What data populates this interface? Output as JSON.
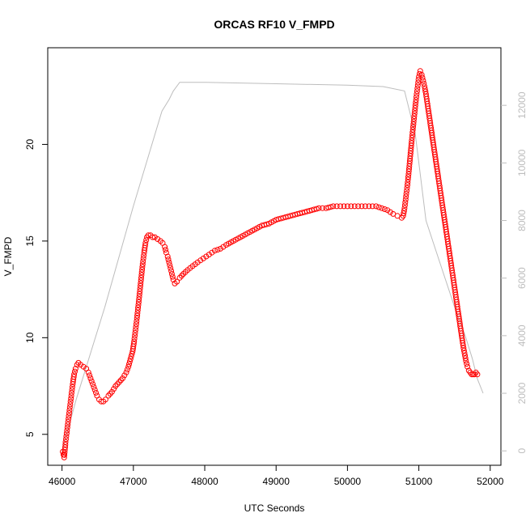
{
  "chart_data": {
    "type": "scatter",
    "title": "ORCAS RF10 V_FMPD",
    "xlabel": "UTC Seconds",
    "ylabel": "V_FMPD",
    "ylabel_right": "",
    "xlim": [
      45800,
      52150
    ],
    "ylim": [
      3.4,
      25.0
    ],
    "ylim_right": [
      -500,
      14000
    ],
    "x_ticks": [
      46000,
      47000,
      48000,
      49000,
      50000,
      51000,
      52000
    ],
    "x_tick_labels": [
      "46000",
      "47000",
      "48000",
      "49000",
      "50000",
      "51000",
      "52000"
    ],
    "y_ticks": [
      5,
      10,
      15,
      20
    ],
    "y_tick_labels": [
      "5",
      "10",
      "15",
      "20"
    ],
    "y_ticks_right": [
      0,
      2000,
      4000,
      6000,
      8000,
      10000,
      12000
    ],
    "y_tick_labels_right": [
      "0",
      "2000",
      "4000",
      "6000",
      "8000",
      "10000",
      "12000"
    ],
    "grid": false,
    "series": [
      {
        "type": "scatter",
        "axis": "left",
        "color": "#ff0000",
        "marker": "open-circle",
        "points": [
          [
            46010,
            4.1
          ],
          [
            46030,
            3.8
          ],
          [
            46050,
            4.6
          ],
          [
            46070,
            5.2
          ],
          [
            46090,
            5.8
          ],
          [
            46110,
            6.4
          ],
          [
            46130,
            7.0
          ],
          [
            46150,
            7.6
          ],
          [
            46170,
            8.1
          ],
          [
            46190,
            8.4
          ],
          [
            46210,
            8.6
          ],
          [
            46230,
            8.7
          ],
          [
            46260,
            8.6
          ],
          [
            46300,
            8.5
          ],
          [
            46340,
            8.4
          ],
          [
            46370,
            8.2
          ],
          [
            46400,
            7.9
          ],
          [
            46430,
            7.6
          ],
          [
            46460,
            7.3
          ],
          [
            46490,
            7.0
          ],
          [
            46520,
            6.8
          ],
          [
            46550,
            6.7
          ],
          [
            46580,
            6.7
          ],
          [
            46610,
            6.8
          ],
          [
            46650,
            7.0
          ],
          [
            46700,
            7.2
          ],
          [
            46750,
            7.5
          ],
          [
            46800,
            7.7
          ],
          [
            46850,
            7.9
          ],
          [
            46900,
            8.2
          ],
          [
            46930,
            8.5
          ],
          [
            46960,
            8.9
          ],
          [
            46990,
            9.3
          ],
          [
            47010,
            9.8
          ],
          [
            47030,
            10.4
          ],
          [
            47050,
            11.0
          ],
          [
            47070,
            11.7
          ],
          [
            47090,
            12.4
          ],
          [
            47110,
            13.1
          ],
          [
            47130,
            13.8
          ],
          [
            47150,
            14.4
          ],
          [
            47170,
            14.9
          ],
          [
            47190,
            15.2
          ],
          [
            47210,
            15.3
          ],
          [
            47240,
            15.3
          ],
          [
            47270,
            15.2
          ],
          [
            47300,
            15.2
          ],
          [
            47340,
            15.1
          ],
          [
            47380,
            15.0
          ],
          [
            47410,
            14.9
          ],
          [
            47440,
            14.7
          ],
          [
            47460,
            14.4
          ],
          [
            47480,
            14.2
          ],
          [
            47500,
            13.9
          ],
          [
            47520,
            13.6
          ],
          [
            47540,
            13.3
          ],
          [
            47560,
            13.0
          ],
          [
            47580,
            12.8
          ],
          [
            47610,
            12.9
          ],
          [
            47650,
            13.1
          ],
          [
            47700,
            13.3
          ],
          [
            47760,
            13.5
          ],
          [
            47830,
            13.7
          ],
          [
            47900,
            13.9
          ],
          [
            47980,
            14.1
          ],
          [
            48060,
            14.3
          ],
          [
            48140,
            14.5
          ],
          [
            48220,
            14.6
          ],
          [
            48300,
            14.8
          ],
          [
            48400,
            15.0
          ],
          [
            48500,
            15.2
          ],
          [
            48600,
            15.4
          ],
          [
            48700,
            15.6
          ],
          [
            48800,
            15.8
          ],
          [
            48900,
            15.9
          ],
          [
            49000,
            16.1
          ],
          [
            49100,
            16.2
          ],
          [
            49200,
            16.3
          ],
          [
            49300,
            16.4
          ],
          [
            49400,
            16.5
          ],
          [
            49500,
            16.6
          ],
          [
            49600,
            16.7
          ],
          [
            49700,
            16.7
          ],
          [
            49800,
            16.8
          ],
          [
            49900,
            16.8
          ],
          [
            50000,
            16.8
          ],
          [
            50100,
            16.8
          ],
          [
            50200,
            16.8
          ],
          [
            50300,
            16.8
          ],
          [
            50400,
            16.8
          ],
          [
            50480,
            16.7
          ],
          [
            50560,
            16.6
          ],
          [
            50640,
            16.4
          ],
          [
            50700,
            16.3
          ],
          [
            50760,
            16.2
          ],
          [
            50780,
            16.3
          ],
          [
            50800,
            16.7
          ],
          [
            50820,
            17.3
          ],
          [
            50840,
            17.9
          ],
          [
            50860,
            18.6
          ],
          [
            50880,
            19.4
          ],
          [
            50900,
            20.2
          ],
          [
            50920,
            20.9
          ],
          [
            50940,
            21.6
          ],
          [
            50960,
            22.3
          ],
          [
            50980,
            22.9
          ],
          [
            51000,
            23.5
          ],
          [
            51020,
            23.8
          ],
          [
            51040,
            23.6
          ],
          [
            51060,
            23.3
          ],
          [
            51080,
            23.0
          ],
          [
            51100,
            22.6
          ],
          [
            51120,
            22.1
          ],
          [
            51140,
            21.6
          ],
          [
            51160,
            21.1
          ],
          [
            51180,
            20.6
          ],
          [
            51200,
            20.1
          ],
          [
            51220,
            19.6
          ],
          [
            51240,
            19.1
          ],
          [
            51260,
            18.6
          ],
          [
            51280,
            18.1
          ],
          [
            51300,
            17.6
          ],
          [
            51320,
            17.1
          ],
          [
            51340,
            16.6
          ],
          [
            51360,
            16.1
          ],
          [
            51380,
            15.6
          ],
          [
            51400,
            15.1
          ],
          [
            51420,
            14.6
          ],
          [
            51440,
            14.1
          ],
          [
            51460,
            13.6
          ],
          [
            51480,
            13.1
          ],
          [
            51500,
            12.6
          ],
          [
            51520,
            12.1
          ],
          [
            51540,
            11.6
          ],
          [
            51560,
            11.1
          ],
          [
            51580,
            10.6
          ],
          [
            51600,
            10.1
          ],
          [
            51620,
            9.6
          ],
          [
            51640,
            9.2
          ],
          [
            51660,
            8.8
          ],
          [
            51680,
            8.5
          ],
          [
            51700,
            8.3
          ],
          [
            51720,
            8.2
          ],
          [
            51740,
            8.1
          ],
          [
            51760,
            8.1
          ],
          [
            51780,
            8.1
          ],
          [
            51800,
            8.2
          ],
          [
            51820,
            8.1
          ]
        ]
      },
      {
        "type": "line",
        "axis": "right",
        "color": "#bdbdbd",
        "points": [
          [
            46000,
            0
          ],
          [
            46200,
            1800
          ],
          [
            46600,
            5000
          ],
          [
            47000,
            8500
          ],
          [
            47400,
            11800
          ],
          [
            47500,
            12200
          ],
          [
            47560,
            12500
          ],
          [
            47650,
            12800
          ],
          [
            48000,
            12800
          ],
          [
            49000,
            12750
          ],
          [
            50000,
            12700
          ],
          [
            50500,
            12650
          ],
          [
            50800,
            12500
          ],
          [
            50950,
            11000
          ],
          [
            51100,
            8000
          ],
          [
            51300,
            6500
          ],
          [
            51500,
            5000
          ],
          [
            51650,
            4000
          ],
          [
            51750,
            3200
          ],
          [
            51820,
            2500
          ],
          [
            51900,
            2000
          ]
        ]
      }
    ]
  }
}
